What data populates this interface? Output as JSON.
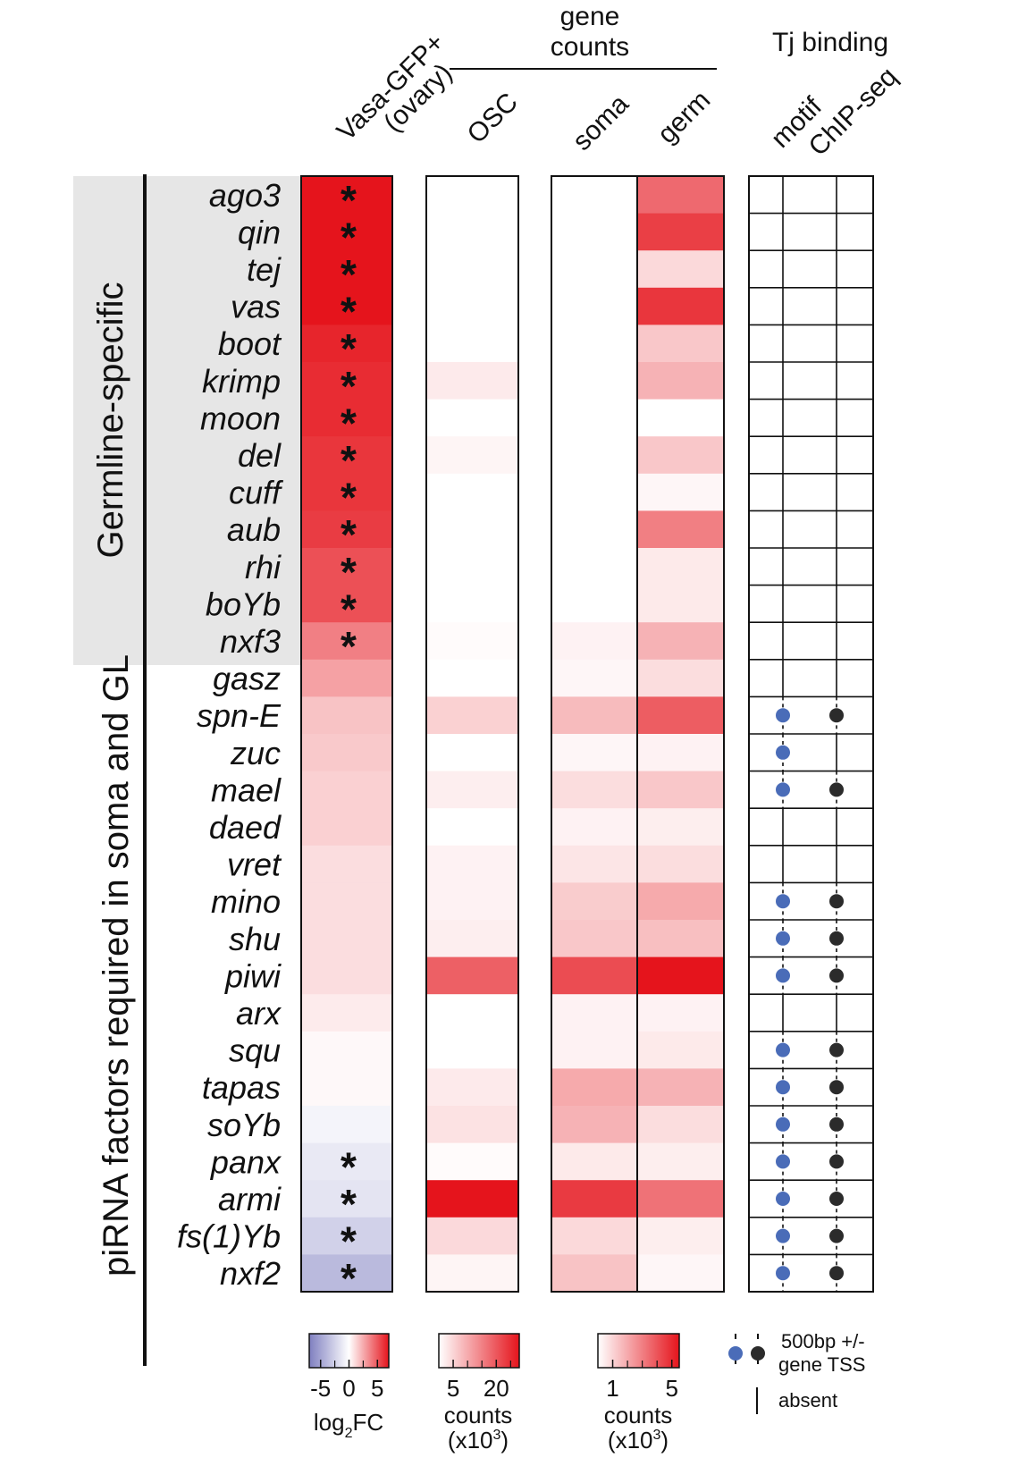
{
  "chart_data": {
    "type": "heatmap",
    "genes": [
      "ago3",
      "qin",
      "tej",
      "vas",
      "boot",
      "krimp",
      "moon",
      "del",
      "cuff",
      "aub",
      "rhi",
      "boYb",
      "nxf3",
      "gasz",
      "spn-E",
      "zuc",
      "mael",
      "daed",
      "vret",
      "mino",
      "shu",
      "piwi",
      "arx",
      "squ",
      "tapas",
      "soYb",
      "panx",
      "armi",
      "fs(1)Yb",
      "nxf2"
    ],
    "groups": [
      {
        "label": "Germline-specific",
        "first_gene": "ago3",
        "last_gene": "nxf3"
      },
      {
        "label": "piRNA factors required in soma and GL",
        "first_gene": "ago3",
        "last_gene": "nxf2"
      }
    ],
    "columns": {
      "vasa": {
        "label_line1": "Vasa-GFP+",
        "label_line2": "(ovary)"
      },
      "gene_counts": {
        "label_line1": "gene",
        "label_line2": "counts",
        "sub": [
          "OSC",
          "soma",
          "germ"
        ]
      },
      "tj_binding": {
        "label": "Tj binding",
        "sub": [
          "motif",
          "ChIP-seq"
        ]
      }
    },
    "vasa_log2fc": [
      7,
      7,
      7,
      7,
      6.5,
      6.3,
      6.3,
      6,
      6,
      5.8,
      5.2,
      5.2,
      3.8,
      2.8,
      1.8,
      1.6,
      1.4,
      1.4,
      1.0,
      1.0,
      1.0,
      1.0,
      0.6,
      0.2,
      0.2,
      -0.6,
      -1.2,
      -1.5,
      -2.5,
      -3.8
    ],
    "significant": [
      true,
      true,
      true,
      true,
      true,
      true,
      true,
      true,
      true,
      true,
      true,
      true,
      true,
      false,
      false,
      false,
      false,
      false,
      false,
      false,
      false,
      false,
      false,
      false,
      false,
      false,
      true,
      true,
      true,
      true
    ],
    "osc_counts_x1000": [
      0,
      0,
      0,
      0,
      0,
      2.5,
      0,
      1.2,
      0,
      0,
      0,
      0,
      0.5,
      0,
      5.5,
      0,
      2.0,
      0,
      1.5,
      1.5,
      2.0,
      19,
      0,
      0,
      2.5,
      3.5,
      0.5,
      28,
      4.5,
      1.2
    ],
    "soma_counts_x1000": [
      0,
      0,
      0,
      0,
      0,
      0,
      0,
      0,
      0,
      0,
      0,
      0,
      0.3,
      0.2,
      1.6,
      0.2,
      0.8,
      0.3,
      0.6,
      1.2,
      1.3,
      4.2,
      0.3,
      0.3,
      2.0,
      1.8,
      0.5,
      4.6,
      0.9,
      1.4
    ],
    "germ_counts_x1000": [
      3.5,
      4.5,
      0.9,
      4.7,
      1.3,
      1.8,
      0,
      1.3,
      0.2,
      3.0,
      0.5,
      0.5,
      1.8,
      0.8,
      3.8,
      0.3,
      1.3,
      0.4,
      0.8,
      2.0,
      1.5,
      5.5,
      0.3,
      0.5,
      1.8,
      0.8,
      0.4,
      3.3,
      0.4,
      0.2
    ],
    "tj_motif": [
      false,
      false,
      false,
      false,
      false,
      false,
      false,
      false,
      false,
      false,
      false,
      false,
      false,
      false,
      true,
      true,
      true,
      false,
      false,
      true,
      true,
      true,
      false,
      true,
      true,
      true,
      true,
      true,
      true,
      true
    ],
    "tj_chipseq": [
      false,
      false,
      false,
      false,
      false,
      false,
      false,
      false,
      false,
      false,
      false,
      false,
      false,
      false,
      true,
      false,
      true,
      false,
      false,
      true,
      true,
      true,
      false,
      true,
      true,
      true,
      true,
      true,
      true,
      true
    ],
    "legends": {
      "log2fc": {
        "ticks": [
          "-5",
          "0",
          "5"
        ],
        "title_main": "log",
        "title_sub": "2",
        "title_tail": "FC",
        "range": [
          -7,
          7
        ]
      },
      "osc": {
        "ticks": [
          "5",
          "20"
        ],
        "title": "counts",
        "unit_prefix": "(x10",
        "unit_exp": "3",
        "unit_suffix": ")",
        "range": [
          0,
          28
        ]
      },
      "soma_germ": {
        "ticks": [
          "1",
          "5"
        ],
        "title": "counts",
        "unit_prefix": "(x10",
        "unit_exp": "3",
        "unit_suffix": ")",
        "range": [
          0,
          5.5
        ]
      },
      "tj": {
        "dots_label_line1": "500bp +/-",
        "dots_label_line2": "gene TSS",
        "line_label": "absent"
      }
    },
    "colors": {
      "red": "#e5141c",
      "blue": "#7f7fc0",
      "white": "#ffffff",
      "motif": "#4a6cb8",
      "chip": "#2b2b2b",
      "panel_bg": "#e6e6e6"
    }
  }
}
